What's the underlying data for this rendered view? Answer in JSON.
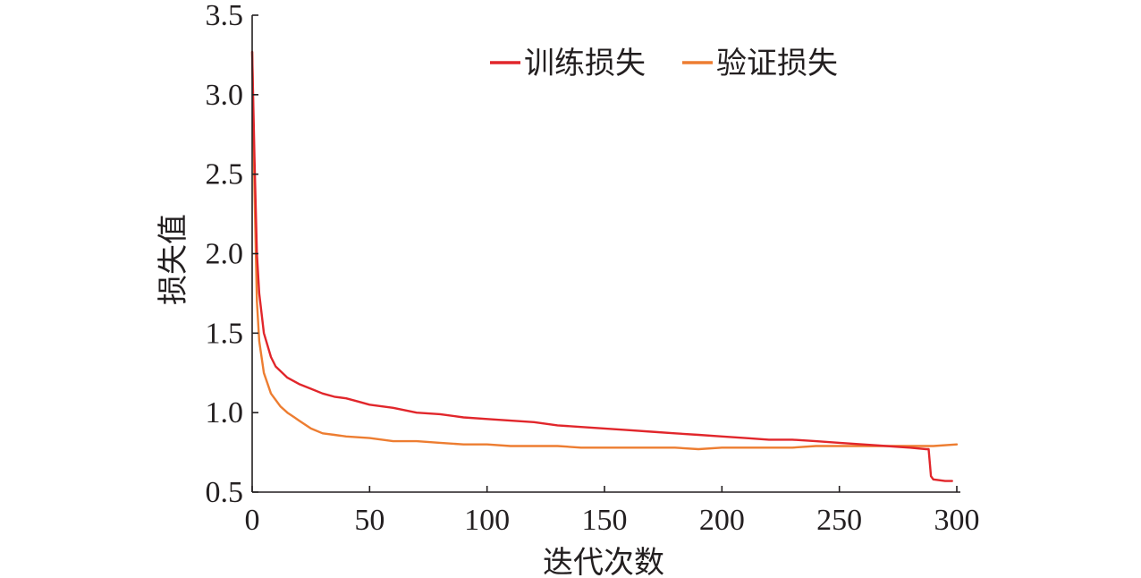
{
  "chart_data": {
    "type": "line",
    "title": "",
    "xlabel": "迭代次数",
    "ylabel": "损失值",
    "xlim": [
      0,
      300
    ],
    "ylim": [
      0.5,
      3.5
    ],
    "xticks": [
      0,
      50,
      100,
      150,
      200,
      250,
      300
    ],
    "yticks": [
      "0.5",
      "1.0",
      "1.5",
      "2.0",
      "2.5",
      "3.0",
      "3.5"
    ],
    "grid": false,
    "legend_position": "top",
    "series": [
      {
        "name": "训练损失",
        "color": "#e1262b",
        "x": [
          0,
          1,
          2,
          3,
          5,
          8,
          10,
          15,
          20,
          25,
          30,
          35,
          40,
          45,
          50,
          60,
          70,
          80,
          90,
          100,
          110,
          120,
          130,
          140,
          150,
          160,
          170,
          180,
          190,
          200,
          210,
          220,
          230,
          240,
          250,
          260,
          270,
          280,
          287,
          288,
          289,
          290,
          295,
          298
        ],
        "y": [
          3.27,
          2.6,
          2.0,
          1.75,
          1.5,
          1.35,
          1.29,
          1.22,
          1.18,
          1.15,
          1.12,
          1.1,
          1.09,
          1.07,
          1.05,
          1.03,
          1.0,
          0.99,
          0.97,
          0.96,
          0.95,
          0.94,
          0.92,
          0.91,
          0.9,
          0.89,
          0.88,
          0.87,
          0.86,
          0.85,
          0.84,
          0.83,
          0.83,
          0.82,
          0.81,
          0.8,
          0.79,
          0.78,
          0.77,
          0.77,
          0.6,
          0.58,
          0.57,
          0.57
        ]
      },
      {
        "name": "验证损失",
        "color": "#ed7d31",
        "x": [
          0,
          1,
          2,
          3,
          5,
          8,
          10,
          12,
          15,
          18,
          20,
          25,
          30,
          35,
          40,
          50,
          60,
          70,
          80,
          90,
          100,
          110,
          120,
          130,
          140,
          150,
          160,
          170,
          180,
          190,
          200,
          210,
          220,
          230,
          240,
          250,
          260,
          270,
          280,
          290,
          300
        ],
        "y": [
          3.27,
          2.4,
          1.7,
          1.45,
          1.25,
          1.12,
          1.08,
          1.04,
          1.0,
          0.97,
          0.95,
          0.9,
          0.87,
          0.86,
          0.85,
          0.84,
          0.82,
          0.82,
          0.81,
          0.8,
          0.8,
          0.79,
          0.79,
          0.79,
          0.78,
          0.78,
          0.78,
          0.78,
          0.78,
          0.77,
          0.78,
          0.78,
          0.78,
          0.78,
          0.79,
          0.79,
          0.79,
          0.79,
          0.79,
          0.79,
          0.8
        ]
      }
    ]
  }
}
